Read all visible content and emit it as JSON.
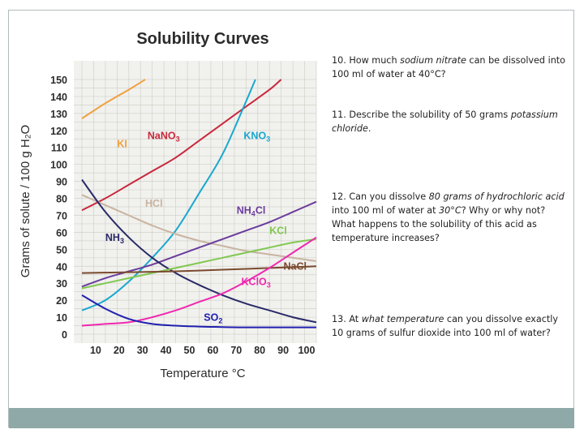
{
  "chart_data": {
    "type": "line",
    "title": "Solubility Curves",
    "xlabel": "Temperature °C",
    "ylabel": "Grams of solute / 100 g H₂O",
    "xlim": [
      0,
      100
    ],
    "ylim": [
      0,
      150
    ],
    "x_ticks": [
      10,
      20,
      30,
      40,
      50,
      60,
      70,
      80,
      90,
      100
    ],
    "y_ticks": [
      0,
      10,
      20,
      30,
      40,
      50,
      60,
      70,
      80,
      90,
      100,
      110,
      120,
      130,
      140,
      150
    ],
    "grid": true,
    "series": [
      {
        "name": "KI",
        "color": "#f0a040",
        "label": "KI",
        "sub": "",
        "label_at": [
          15,
          110
        ],
        "points": [
          [
            0,
            127
          ],
          [
            10,
            136
          ],
          [
            20,
            144
          ],
          [
            27,
            150
          ]
        ]
      },
      {
        "name": "NaNO3",
        "color": "#c8283c",
        "label": "NaNO",
        "sub": "3",
        "label_at": [
          28,
          115
        ],
        "points": [
          [
            0,
            73
          ],
          [
            10,
            80
          ],
          [
            20,
            88
          ],
          [
            30,
            96
          ],
          [
            40,
            104
          ],
          [
            50,
            114
          ],
          [
            60,
            124
          ],
          [
            70,
            134
          ],
          [
            80,
            144
          ],
          [
            85,
            150
          ]
        ]
      },
      {
        "name": "KNO3",
        "color": "#18a8d0",
        "label": "KNO",
        "sub": "3",
        "label_at": [
          69,
          115
        ],
        "points": [
          [
            0,
            14
          ],
          [
            10,
            20
          ],
          [
            20,
            31
          ],
          [
            30,
            45
          ],
          [
            40,
            61
          ],
          [
            50,
            83
          ],
          [
            60,
            106
          ],
          [
            70,
            137
          ],
          [
            74,
            150
          ]
        ]
      },
      {
        "name": "HCl",
        "color": "#c8b4a0",
        "label": "HCl",
        "sub": "",
        "label_at": [
          27,
          75
        ],
        "points": [
          [
            0,
            82
          ],
          [
            10,
            76
          ],
          [
            20,
            70
          ],
          [
            30,
            64
          ],
          [
            40,
            59
          ],
          [
            50,
            55
          ],
          [
            60,
            52
          ],
          [
            70,
            49
          ],
          [
            80,
            47
          ],
          [
            90,
            45
          ],
          [
            100,
            43
          ]
        ]
      },
      {
        "name": "NH4Cl",
        "color": "#6a3c9c",
        "label": "NH",
        "sub": "4",
        "label_tail": "Cl",
        "label_at": [
          66,
          71
        ],
        "points": [
          [
            0,
            28
          ],
          [
            10,
            33
          ],
          [
            20,
            37
          ],
          [
            30,
            41
          ],
          [
            40,
            46
          ],
          [
            50,
            51
          ],
          [
            60,
            56
          ],
          [
            70,
            61
          ],
          [
            80,
            66
          ],
          [
            90,
            72
          ],
          [
            100,
            78
          ]
        ]
      },
      {
        "name": "NH3",
        "color": "#2a2a68",
        "label": "NH",
        "sub": "3",
        "label_at": [
          10,
          55
        ],
        "points": [
          [
            0,
            91
          ],
          [
            10,
            72
          ],
          [
            20,
            57
          ],
          [
            30,
            45
          ],
          [
            40,
            36
          ],
          [
            50,
            29
          ],
          [
            60,
            23
          ],
          [
            70,
            18
          ],
          [
            80,
            14
          ],
          [
            90,
            10
          ],
          [
            100,
            7
          ]
        ]
      },
      {
        "name": "KCl",
        "color": "#80c850",
        "label": "KCl",
        "sub": "",
        "label_at": [
          80,
          59
        ],
        "points": [
          [
            0,
            27
          ],
          [
            10,
            30
          ],
          [
            20,
            33
          ],
          [
            30,
            36
          ],
          [
            40,
            39
          ],
          [
            50,
            42
          ],
          [
            60,
            45
          ],
          [
            70,
            48
          ],
          [
            80,
            51
          ],
          [
            90,
            54
          ],
          [
            100,
            56
          ]
        ]
      },
      {
        "name": "NaCl",
        "color": "#7a4a2e",
        "label": "NaCl",
        "sub": "",
        "label_at": [
          86,
          38
        ],
        "points": [
          [
            0,
            36
          ],
          [
            20,
            36.5
          ],
          [
            40,
            37
          ],
          [
            60,
            38
          ],
          [
            80,
            39
          ],
          [
            100,
            40
          ]
        ]
      },
      {
        "name": "KClO3",
        "color": "#f028b0",
        "label": "KClO",
        "sub": "3",
        "label_at": [
          68,
          29
        ],
        "points": [
          [
            0,
            5
          ],
          [
            10,
            6
          ],
          [
            20,
            7
          ],
          [
            30,
            10
          ],
          [
            40,
            14
          ],
          [
            50,
            19
          ],
          [
            60,
            24
          ],
          [
            70,
            31
          ],
          [
            80,
            39
          ],
          [
            90,
            48
          ],
          [
            100,
            57
          ]
        ]
      },
      {
        "name": "SO2",
        "color": "#2020b0",
        "label": "SO",
        "sub": "2",
        "label_at": [
          52,
          8
        ],
        "points": [
          [
            0,
            23
          ],
          [
            10,
            15
          ],
          [
            20,
            9
          ],
          [
            30,
            6
          ],
          [
            40,
            5
          ],
          [
            50,
            4.5
          ],
          [
            60,
            4.2
          ],
          [
            70,
            4
          ],
          [
            80,
            4
          ],
          [
            90,
            4
          ],
          [
            100,
            4
          ]
        ]
      }
    ]
  },
  "questions": [
    {
      "parts": [
        {
          "t": "10. How much "
        },
        {
          "t": "sodium nitrate",
          "i": true
        },
        {
          "t": " can be dissolved into 100 ml of water at 40°C?"
        }
      ]
    },
    {
      "parts": [
        {
          "t": "11. Describe the solubility of 50 grams "
        },
        {
          "t": "potassium chloride",
          "i": true
        },
        {
          "t": "."
        }
      ]
    },
    {
      "parts": [
        {
          "t": "12. Can you dissolve "
        },
        {
          "t": "80 grams of hydrochloric acid",
          "i": true
        },
        {
          "t": " into 100 ml of water at "
        },
        {
          "t": "30°C",
          "i": true
        },
        {
          "t": "? Why or why not? What happens to the solubility of this acid as temperature increases?"
        }
      ]
    },
    {
      "parts": [
        {
          "t": "13. At "
        },
        {
          "t": "what temperature",
          "i": true
        },
        {
          "t": " can you dissolve exactly 10 grams of sulfur dioxide into 100 ml of water?"
        }
      ]
    }
  ]
}
